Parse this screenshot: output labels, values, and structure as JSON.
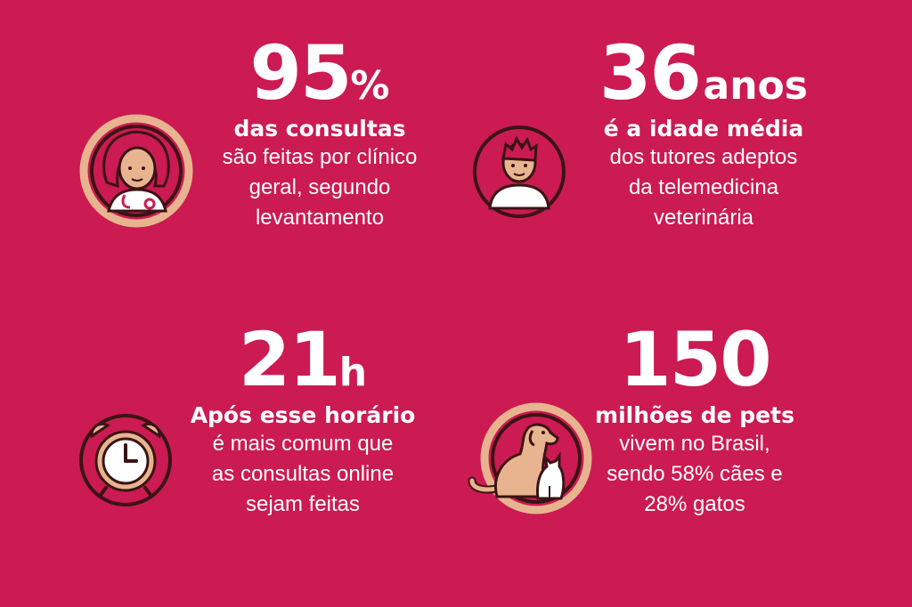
{
  "stats": [
    {
      "value_number": "95",
      "value_unit": "%",
      "highlight": "das consultas",
      "lines": [
        "são feitas por clínico",
        "geral, segundo",
        "levantamento"
      ],
      "icon": "doctor-icon"
    },
    {
      "value_number": "36",
      "value_unit": "anos",
      "highlight": "é a idade média",
      "lines": [
        "dos tutores adeptos",
        "da telemedicina",
        "veterinária"
      ],
      "icon": "person-icon"
    },
    {
      "value_number": "21",
      "value_unit": "h",
      "highlight": "Após esse horário",
      "lines": [
        "é mais comum que",
        "as consultas online",
        "sejam feitas"
      ],
      "icon": "alarm-clock-icon"
    },
    {
      "value_number": "150",
      "value_unit": "",
      "highlight": "milhões de pets",
      "lines": [
        "vivem no Brasil,",
        "sendo 58% cães e",
        "28% gatos"
      ],
      "icon": "dog-and-cat-icon"
    }
  ],
  "colors": {
    "background": "#cc1a52",
    "text": "#ffffff",
    "ring": "#e8b48f",
    "outline": "#3a1414"
  }
}
